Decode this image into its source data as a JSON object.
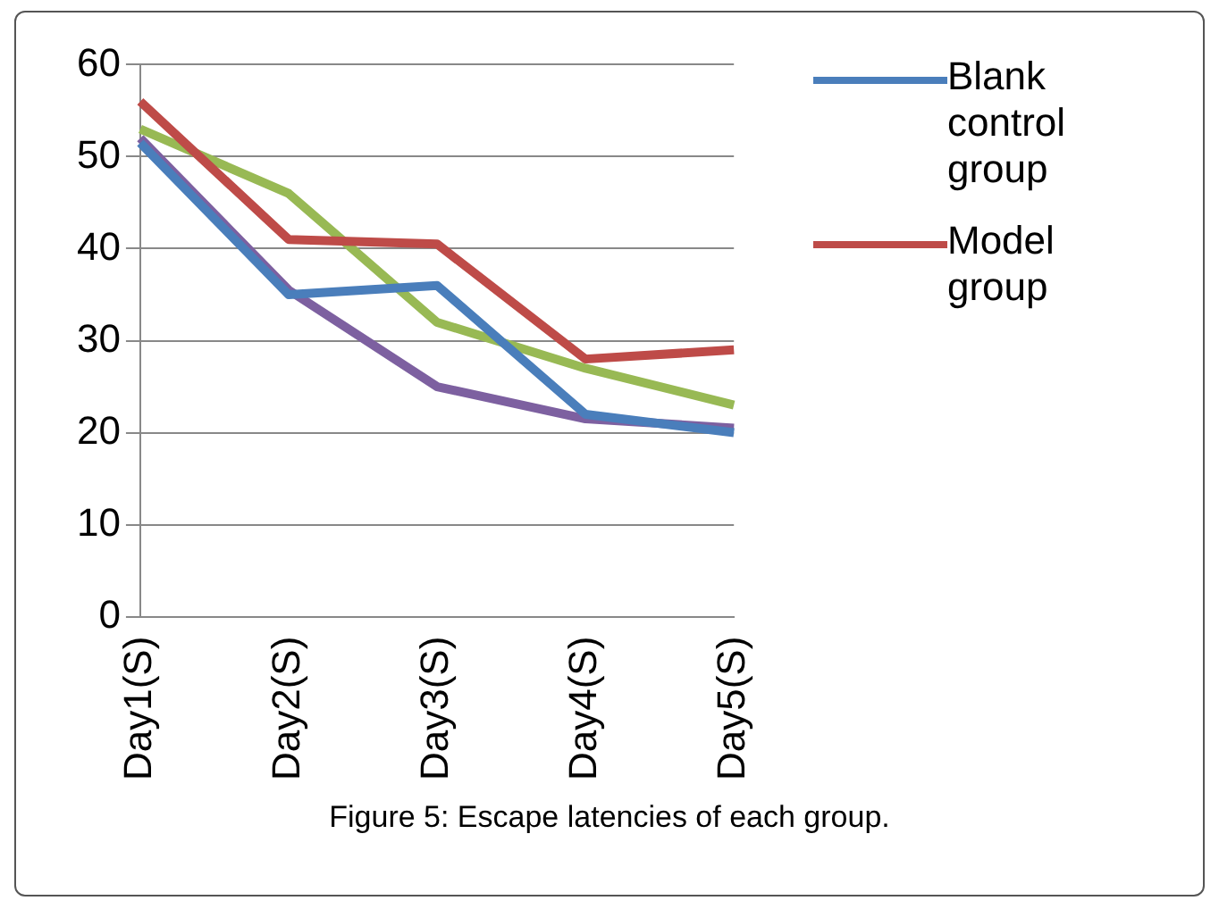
{
  "chart_data": {
    "type": "line",
    "title": "Figure 5: Escape latencies of each group.",
    "categories": [
      "Day1(S)",
      "Day2(S)",
      "Day3(S)",
      "Day4(S)",
      "Day5(S)"
    ],
    "series": [
      {
        "name": "Blank control group",
        "color": "#4a7ebb",
        "values": [
          51.5,
          35,
          36,
          22,
          20
        ]
      },
      {
        "name": "Model group",
        "color": "#be4b48",
        "values": [
          56,
          41,
          40.5,
          28,
          29
        ]
      },
      {
        "color": "#98b954",
        "values": [
          53,
          46,
          32,
          27,
          23
        ]
      },
      {
        "color": "#7d60a0",
        "values": [
          52,
          35.5,
          25,
          21.5,
          20.5
        ]
      }
    ],
    "ylim": [
      0,
      60
    ],
    "yticks": [
      0,
      10,
      20,
      30,
      40,
      50,
      60
    ],
    "grid": "y",
    "legend": "right",
    "marker": "none"
  }
}
